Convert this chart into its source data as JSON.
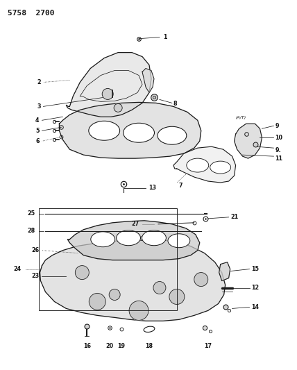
{
  "title": "5758 2700",
  "bg_color": "#ffffff",
  "line_color": "#1a1a1a",
  "text_color": "#111111",
  "figsize": [
    4.28,
    5.33
  ],
  "dpi": 100,
  "lw_main": 0.9,
  "lw_label": 0.55,
  "fs_label": 5.8
}
